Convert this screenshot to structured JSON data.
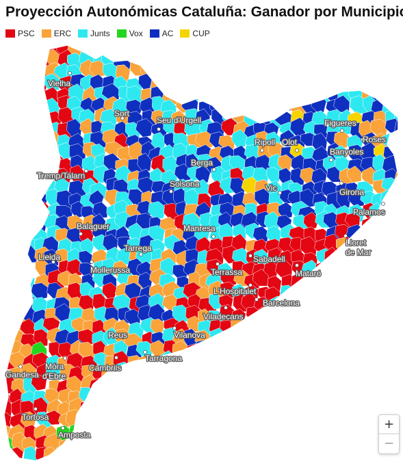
{
  "title": "Proyección Autonómicas Cataluña: Ganador por Municipio",
  "legend": [
    {
      "label": "PSC",
      "color": "#e30613"
    },
    {
      "label": "ERC",
      "color": "#f9a33a"
    },
    {
      "label": "Junts",
      "color": "#2ee8f0"
    },
    {
      "label": "Vox",
      "color": "#23d61f"
    },
    {
      "label": "AC",
      "color": "#0f2fbf"
    },
    {
      "label": "CUP",
      "color": "#f5d400"
    }
  ],
  "map": {
    "cities": [
      {
        "name": "Vielha",
        "lines": [
          "Vielha"
        ]
      },
      {
        "name": "Sort",
        "lines": [
          "Sort"
        ]
      },
      {
        "name": "Seu d'Urgell",
        "lines": [
          "Seu d'Urgell"
        ]
      },
      {
        "name": "Figueres",
        "lines": [
          "Figueres"
        ]
      },
      {
        "name": "Roses",
        "lines": [
          "Roses"
        ]
      },
      {
        "name": "Ripoll",
        "lines": [
          "Ripoll"
        ]
      },
      {
        "name": "Olot",
        "lines": [
          "Olot"
        ]
      },
      {
        "name": "Banyoles",
        "lines": [
          "Banyoles"
        ]
      },
      {
        "name": "Berga",
        "lines": [
          "Berga"
        ]
      },
      {
        "name": "Tremp/Talarn",
        "lines": [
          "Tremp/Talarn"
        ]
      },
      {
        "name": "Solsona",
        "lines": [
          "Solsona"
        ]
      },
      {
        "name": "Vic",
        "lines": [
          "Vic"
        ]
      },
      {
        "name": "Girona",
        "lines": [
          "Girona"
        ]
      },
      {
        "name": "Palamos",
        "lines": [
          "Palamos"
        ]
      },
      {
        "name": "Balaguer",
        "lines": [
          "Balaguer"
        ]
      },
      {
        "name": "Manresa",
        "lines": [
          "Manresa"
        ]
      },
      {
        "name": "Lloret de Mar",
        "lines": [
          "Lloret",
          "de Mar"
        ]
      },
      {
        "name": "Tarrega",
        "lines": [
          "Tarrega"
        ]
      },
      {
        "name": "Lleida",
        "lines": [
          "Lleida"
        ]
      },
      {
        "name": "Sabadell",
        "lines": [
          "Sabadell"
        ]
      },
      {
        "name": "Mollerussa",
        "lines": [
          "Mollerussa"
        ]
      },
      {
        "name": "Terrassa",
        "lines": [
          "Terrassa"
        ]
      },
      {
        "name": "Mataró",
        "lines": [
          "Mataró"
        ]
      },
      {
        "name": "L'Hospitalet",
        "lines": [
          "L'Hospitalet"
        ]
      },
      {
        "name": "Barcelona",
        "lines": [
          "Barcelona"
        ]
      },
      {
        "name": "Viladecans",
        "lines": [
          "Viladecans"
        ]
      },
      {
        "name": "Reus",
        "lines": [
          "Reus"
        ]
      },
      {
        "name": "Vilanova",
        "lines": [
          "Vilanova"
        ]
      },
      {
        "name": "Tarragona",
        "lines": [
          "Tarragona"
        ]
      },
      {
        "name": "Cambrils",
        "lines": [
          "Cambrils"
        ]
      },
      {
        "name": "Gandesa",
        "lines": [
          "Gandesa"
        ]
      },
      {
        "name": "Móra d'Ebre",
        "lines": [
          "Móra",
          "d'Ebre"
        ]
      },
      {
        "name": "Tortosa",
        "lines": [
          "Tortosa"
        ]
      },
      {
        "name": "Amposta",
        "lines": [
          "Amposta"
        ]
      }
    ]
  },
  "zoom": {
    "in_label": "+",
    "out_label": "−"
  }
}
